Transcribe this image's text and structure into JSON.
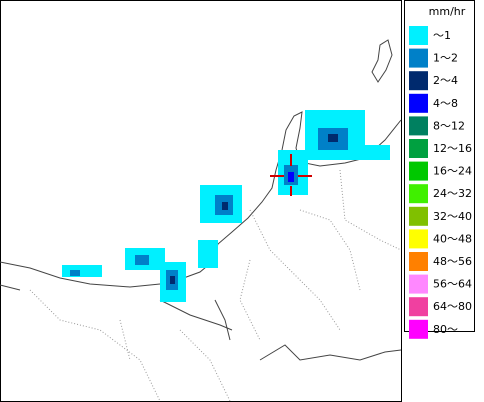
{
  "legend": {
    "unit": "mm/hr",
    "items": [
      {
        "label": "～1",
        "color": "#00f0ff"
      },
      {
        "label": "1～2",
        "color": "#0080c8"
      },
      {
        "label": "2～4",
        "color": "#002a6e"
      },
      {
        "label": "4～8",
        "color": "#0000ff"
      },
      {
        "label": "8～12",
        "color": "#008060"
      },
      {
        "label": "12～16",
        "color": "#00a040"
      },
      {
        "label": "16～24",
        "color": "#00c800"
      },
      {
        "label": "24～32",
        "color": "#40f000"
      },
      {
        "label": "32～40",
        "color": "#80c000"
      },
      {
        "label": "40～48",
        "color": "#ffff00"
      },
      {
        "label": "48～56",
        "color": "#ff8000"
      },
      {
        "label": "56～64",
        "color": "#ff88ff"
      },
      {
        "label": "64～80",
        "color": "#f040a0"
      },
      {
        "label": "80～",
        "color": "#ff00ff"
      }
    ]
  }
}
